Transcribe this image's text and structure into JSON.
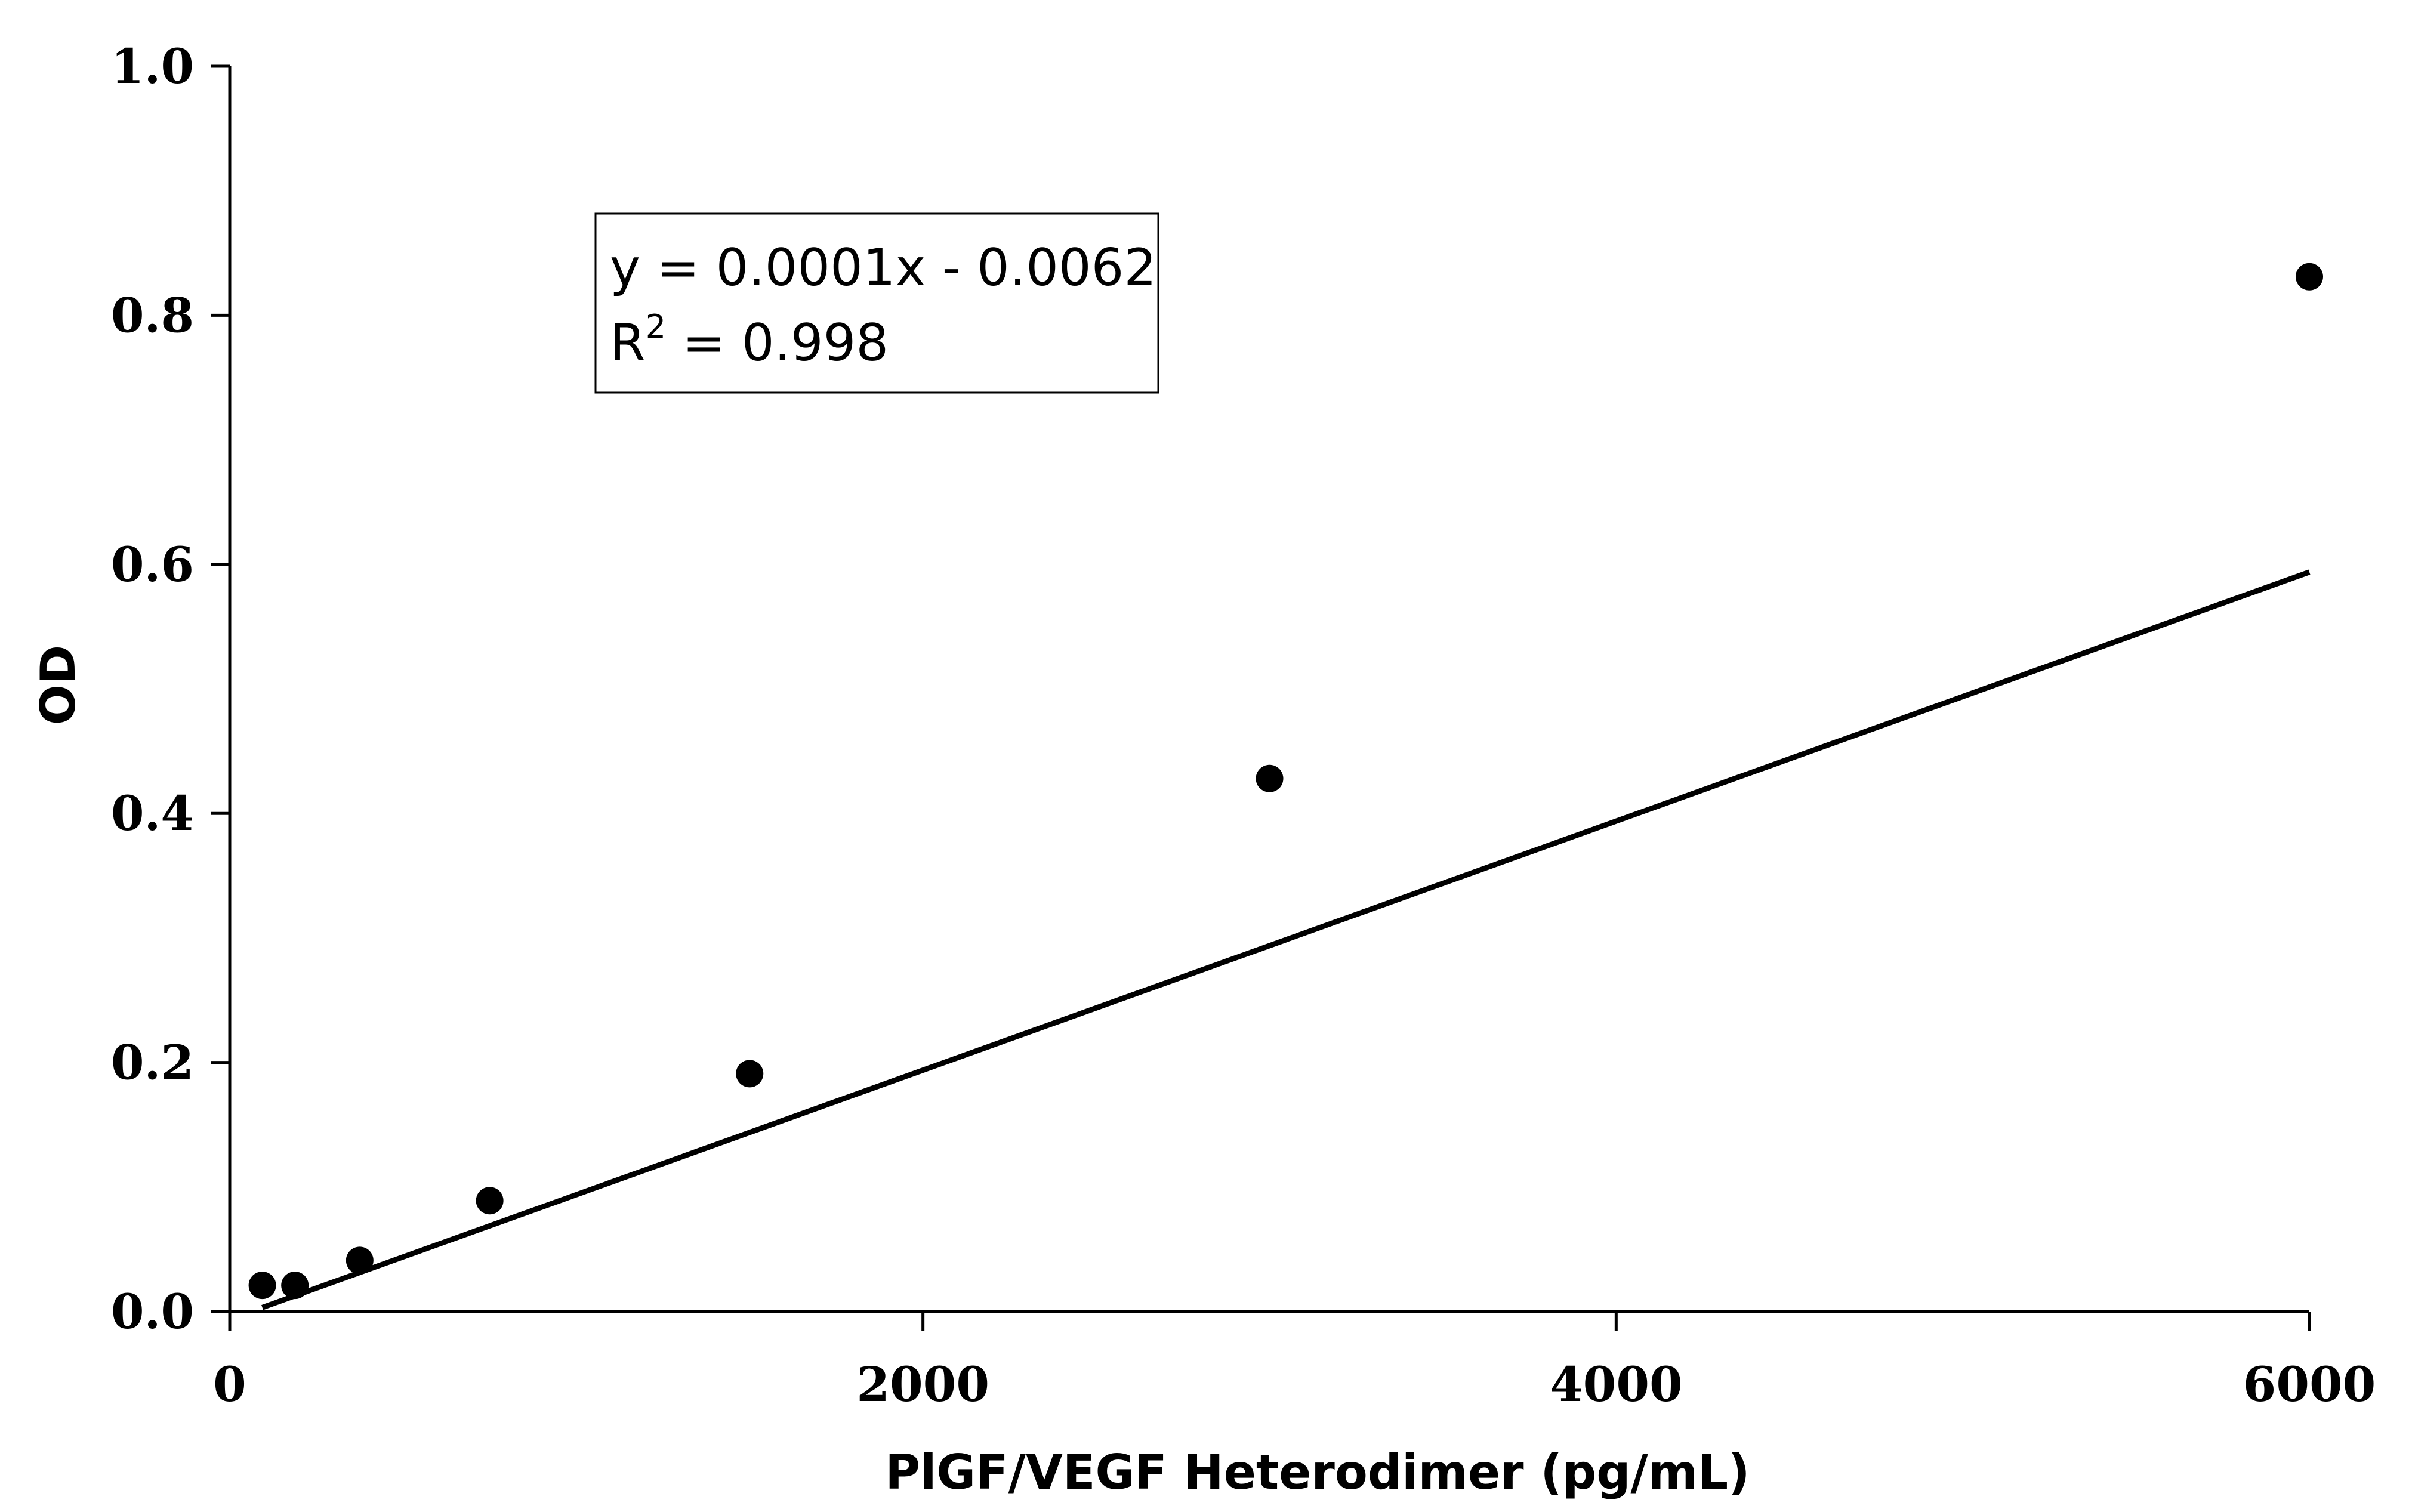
{
  "chart_data": {
    "type": "scatter",
    "xlabel": "PlGF/VEGF Heterodimer (pg/mL)",
    "ylabel": "OD",
    "xlim": [
      0,
      6000
    ],
    "ylim": [
      0,
      1.0
    ],
    "xticks": [
      "0",
      "2000",
      "4000",
      "6000"
    ],
    "yticks": [
      "0.0",
      "0.2",
      "0.4",
      "0.6",
      "0.8",
      "1.0"
    ],
    "grid": false,
    "points": [
      {
        "x": 94,
        "y": 0.021
      },
      {
        "x": 188,
        "y": 0.021
      },
      {
        "x": 375,
        "y": 0.041
      },
      {
        "x": 750,
        "y": 0.089
      },
      {
        "x": 1500,
        "y": 0.191
      },
      {
        "x": 3000,
        "y": 0.428
      },
      {
        "x": 6000,
        "y": 0.831
      }
    ],
    "trendline": {
      "type": "linear",
      "slope": 0.0001,
      "intercept": -0.0062,
      "x_range": [
        94,
        6000
      ]
    },
    "annotation": {
      "equation": "y = 0.0001x - 0.0062",
      "r_squared_prefix": "R",
      "r_squared_superscript": "2",
      "r_squared_value": " = 0.998"
    },
    "colors": {
      "marker": "#000000",
      "line": "#000000"
    }
  }
}
